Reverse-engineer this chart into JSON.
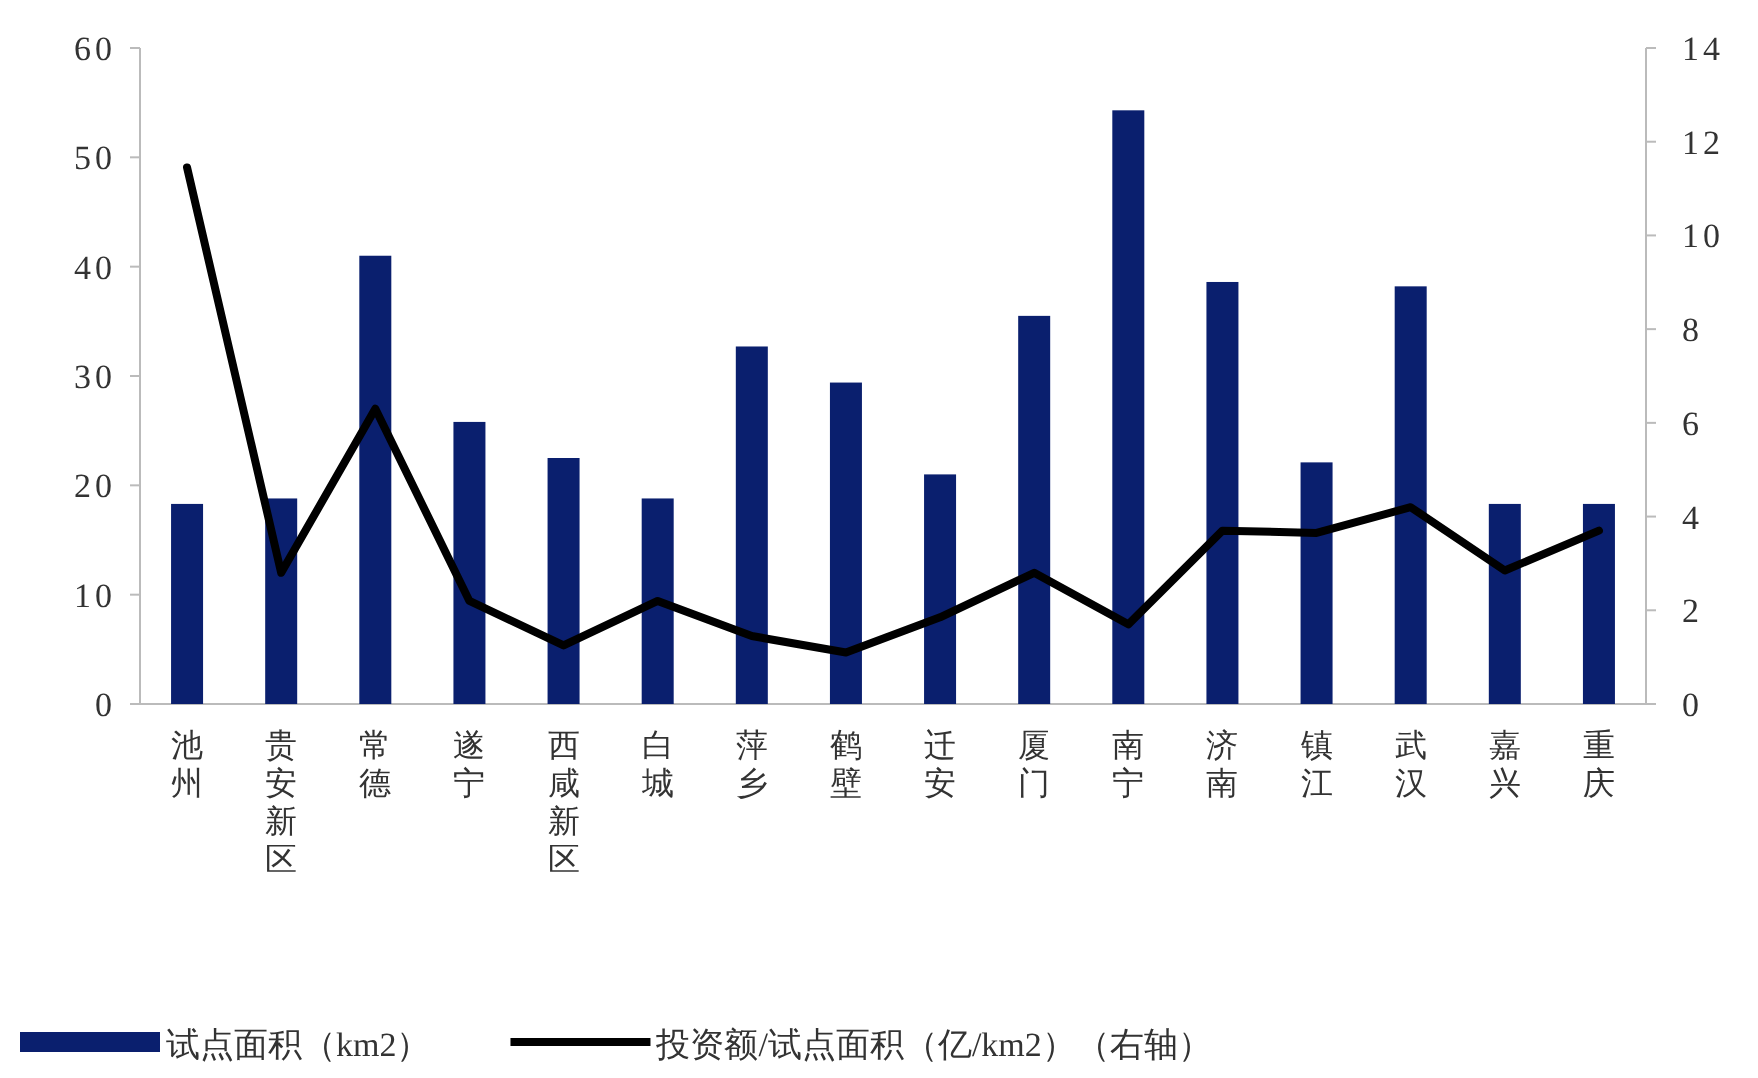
{
  "chart_data": {
    "type": "bar",
    "categories": [
      "池州",
      "贵安新区",
      "常德",
      "遂宁",
      "西咸新区",
      "白城",
      "萍乡",
      "鹤壁",
      "迁安",
      "厦门",
      "南宁",
      "济南",
      "镇江",
      "武汉",
      "嘉兴",
      "重庆"
    ],
    "series": [
      {
        "name": "试点面积（km2）",
        "color": "#0a1f6e",
        "values": [
          18.3,
          18.8,
          41,
          25.8,
          22.5,
          18.8,
          32.7,
          29.4,
          21,
          35.5,
          54.3,
          38.6,
          22.1,
          38.2,
          18.3,
          18.3
        ]
      },
      {
        "name": "投资额/试点面积（亿/km2）（右轴）",
        "type": "line",
        "axis": "y2",
        "color": "#000000",
        "values": [
          11.45,
          2.8,
          6.3,
          2.2,
          1.25,
          2.2,
          1.45,
          1.1,
          1.85,
          2.8,
          1.7,
          3.7,
          3.65,
          4.2,
          2.85,
          3.7
        ]
      }
    ],
    "ylim": [
      0,
      60
    ],
    "yticks": [
      0,
      10,
      20,
      30,
      40,
      50,
      60
    ],
    "y2lim": [
      0,
      14
    ],
    "y2ticks": [
      0,
      2,
      4,
      6,
      8,
      10,
      12,
      14
    ],
    "legend": "bottom"
  }
}
